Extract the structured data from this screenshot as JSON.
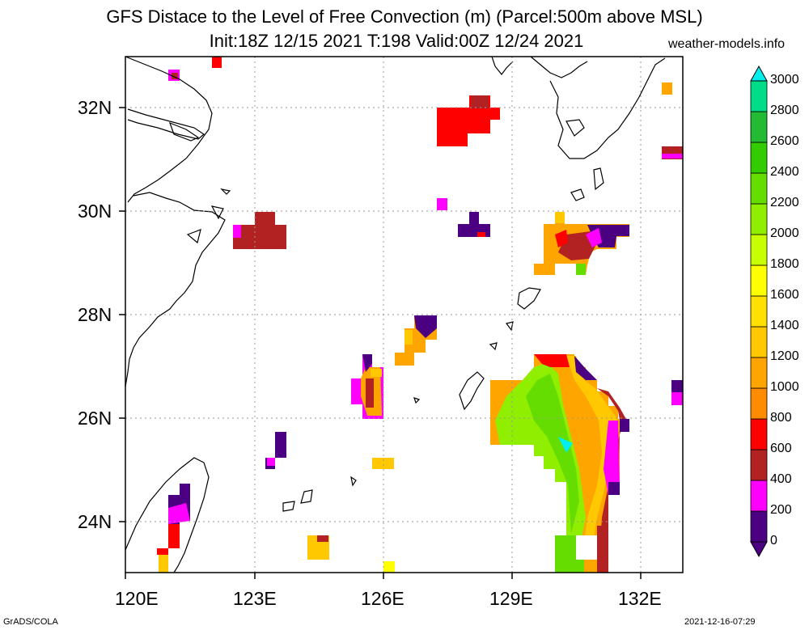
{
  "title": {
    "line1": "GFS Distace to the Level of Free Convection (m) (Parcel:500m above MSL)",
    "line2": "Init:18Z 12/15 2021 T:198 Valid:00Z 12/24 2021",
    "site": "weather-models.info"
  },
  "footer": {
    "left": "GrADS/COLA",
    "right": "2021-12-16-07:29"
  },
  "map": {
    "lon_range": [
      120,
      133
    ],
    "lat_range": [
      23,
      33
    ],
    "lon_ticks": [
      "120E",
      "123E",
      "126E",
      "129E",
      "132E"
    ],
    "lat_ticks": [
      "24N",
      "26N",
      "28N",
      "30N",
      "32N"
    ],
    "grid": true
  },
  "colorbar": {
    "labels": [
      "0",
      "200",
      "400",
      "600",
      "800",
      "1000",
      "1200",
      "1400",
      "1600",
      "1800",
      "2000",
      "2200",
      "2400",
      "2600",
      "2800",
      "3000"
    ],
    "colors": [
      "#4b0082",
      "#ff00ff",
      "#b22222",
      "#ff0000",
      "#ff8c00",
      "#ffa500",
      "#ffc800",
      "#ffe000",
      "#ffff00",
      "#c8ff00",
      "#90ee00",
      "#66dd00",
      "#33cc00",
      "#22bb33",
      "#00dd88",
      "#00eeee"
    ]
  }
}
